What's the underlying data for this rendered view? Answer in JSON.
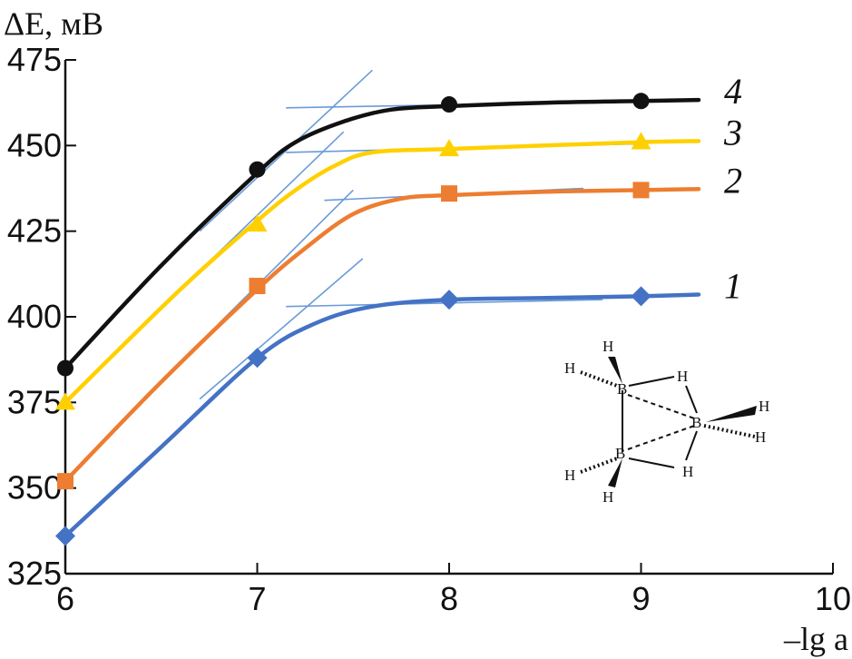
{
  "chart_data": {
    "type": "line",
    "ylabel": "ΔE, мВ",
    "xlabel": "–lg a",
    "xlim": [
      6,
      10
    ],
    "ylim": [
      325,
      475
    ],
    "x_ticks": [
      6,
      7,
      8,
      9,
      10
    ],
    "y_ticks": [
      325,
      350,
      375,
      400,
      425,
      450,
      475
    ],
    "grid": false,
    "series": [
      {
        "name": "1",
        "color": "#4472C4",
        "marker": "diamond",
        "x": [
          6,
          7,
          8,
          9
        ],
        "y": [
          336,
          388,
          405,
          406
        ],
        "curve_x": [
          6,
          6.5,
          7,
          7.3,
          7.6,
          8,
          8.5,
          9,
          9.3
        ],
        "curve_y": [
          336,
          362,
          388,
          398,
          403,
          405,
          405.5,
          406,
          406.5
        ],
        "tangent_lines": [
          {
            "x": [
              6.7,
              7.55
            ],
            "y": [
              376,
              417
            ]
          },
          {
            "x": [
              7.15,
              8.8
            ],
            "y": [
              403,
              405
            ]
          }
        ]
      },
      {
        "name": "2",
        "color": "#ED7D31",
        "marker": "square",
        "x": [
          6,
          7,
          8,
          9
        ],
        "y": [
          352,
          409,
          436,
          437
        ],
        "curve_x": [
          6,
          6.5,
          7,
          7.25,
          7.5,
          7.75,
          8,
          8.5,
          9,
          9.3
        ],
        "curve_y": [
          352,
          381,
          408,
          420,
          430,
          434.5,
          435.5,
          436.5,
          437,
          437.3
        ],
        "tangent_lines": [
          {
            "x": [
              6.8,
              7.5
            ],
            "y": [
              398,
              437
            ]
          },
          {
            "x": [
              7.35,
              8.7
            ],
            "y": [
              434,
              437.5
            ]
          }
        ]
      },
      {
        "name": "3",
        "color": "#FFD000",
        "marker": "triangle",
        "x": [
          6,
          7,
          8,
          9
        ],
        "y": [
          375,
          427,
          449,
          451
        ],
        "curve_x": [
          6,
          6.6,
          7,
          7.2,
          7.4,
          7.6,
          8,
          8.5,
          9,
          9.3
        ],
        "curve_y": [
          375,
          408,
          428,
          437,
          444,
          448,
          449,
          450,
          451,
          451.3
        ],
        "tangent_lines": [
          {
            "x": [
              6.6,
              7.45
            ],
            "y": [
              408,
              454
            ]
          },
          {
            "x": [
              7.15,
              9.0
            ],
            "y": [
              448,
              450.5
            ]
          }
        ]
      },
      {
        "name": "4",
        "color": "#111111",
        "marker": "circle",
        "x": [
          6,
          7,
          8,
          9
        ],
        "y": [
          385,
          443,
          462,
          463
        ],
        "curve_x": [
          6,
          6.5,
          7,
          7.2,
          7.45,
          7.7,
          8,
          8.5,
          9,
          9.3
        ],
        "curve_y": [
          385,
          415,
          442,
          451,
          457,
          460.5,
          461.5,
          462.5,
          463,
          463.3
        ],
        "tangent_lines": [
          {
            "x": [
              6.7,
              7.6
            ],
            "y": [
              425,
              472
            ]
          },
          {
            "x": [
              7.15,
              9.1
            ],
            "y": [
              461,
              463
            ]
          }
        ]
      }
    ],
    "inset": {
      "type": "molecule",
      "atom_labels": [
        "H",
        "H",
        "H",
        "B",
        "B",
        "B",
        "H",
        "H",
        "H",
        "H",
        "H",
        "H"
      ]
    }
  }
}
